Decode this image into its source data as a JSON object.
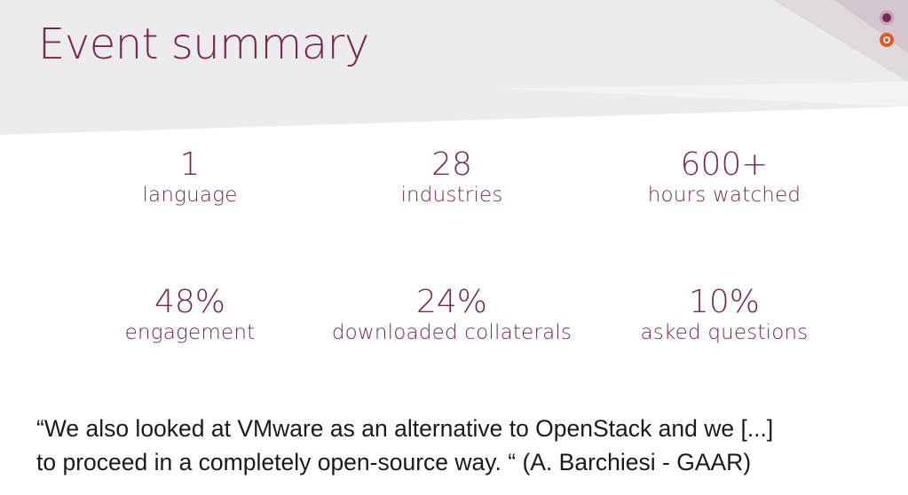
{
  "slide": {
    "title": "Event summary"
  },
  "colors": {
    "accent": "#772953",
    "brand_orange": "#E95420"
  },
  "icons": [
    "aubergine-circle-icon",
    "ubuntu-circle-of-friends-icon"
  ],
  "stats": [
    {
      "value": "1",
      "label": "language"
    },
    {
      "value": "28",
      "label": "industries"
    },
    {
      "value": "600+",
      "label": "hours watched"
    },
    {
      "value": "48%",
      "label": "engagement"
    },
    {
      "value": "24%",
      "label": "downloaded collaterals"
    },
    {
      "value": "10%",
      "label": "asked questions"
    }
  ],
  "quote": {
    "line1": "“We also looked at VMware as an alternative to OpenStack and we [...]",
    "line2": "to proceed in a completely open-source way. “ (A. Barchiesi - GAAR)"
  }
}
